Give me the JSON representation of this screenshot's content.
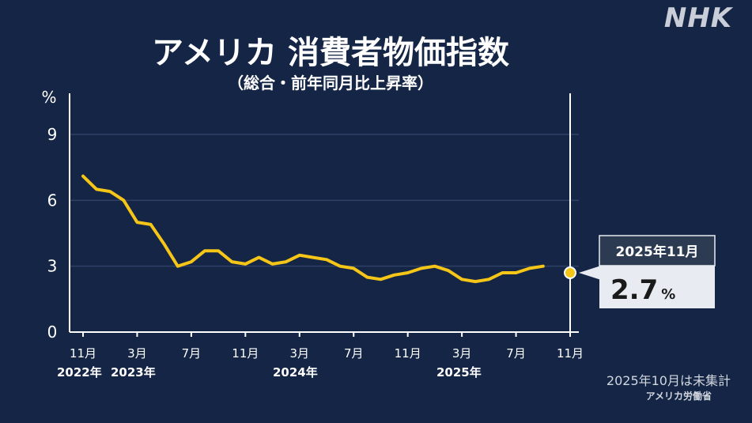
{
  "header": {
    "title": "アメリカ 消費者物価指数",
    "subtitle": "（総合・前年同月比上昇率）",
    "logo": "NHK"
  },
  "footer": {
    "note": "2025年10月は未集計",
    "source": "アメリカ労働省"
  },
  "callout": {
    "date": "2025年11月",
    "value": "2.7",
    "unit": "%"
  },
  "colors": {
    "background": "#142545",
    "line": "#f5c518",
    "grid": "#2e4166"
  },
  "chart_data": {
    "type": "line",
    "title": "アメリカ 消費者物価指数",
    "subtitle": "（総合・前年同月比上昇率）",
    "ylabel": "%",
    "ylim": [
      0,
      10
    ],
    "yticks": [
      0,
      3,
      6,
      9
    ],
    "grid": true,
    "x_tick_labels": [
      "11月",
      "3月",
      "7月",
      "11月",
      "3月",
      "7月",
      "11月",
      "3月",
      "7月",
      "11月"
    ],
    "x_tick_index": [
      0,
      4,
      8,
      12,
      16,
      20,
      24,
      28,
      32,
      36
    ],
    "year_labels": [
      {
        "label": "2022年",
        "index": 0
      },
      {
        "label": "2023年",
        "index": 2
      },
      {
        "label": "2024年",
        "index": 16
      },
      {
        "label": "2025年",
        "index": 28
      }
    ],
    "series": [
      {
        "values": [
          7.1,
          6.5,
          6.4,
          6.0,
          5.0,
          4.9,
          4.0,
          3.0,
          3.2,
          3.7,
          3.7,
          3.2,
          3.1,
          3.4,
          3.1,
          3.2,
          3.5,
          3.4,
          3.3,
          3.0,
          2.9,
          2.5,
          2.4,
          2.6,
          2.7,
          2.9,
          3.0,
          2.8,
          2.4,
          2.3,
          2.4,
          2.7,
          2.7,
          2.9,
          3.0
        ]
      }
    ],
    "highlight": {
      "index": 36,
      "value": 2.7,
      "label": "2025年11月"
    }
  }
}
